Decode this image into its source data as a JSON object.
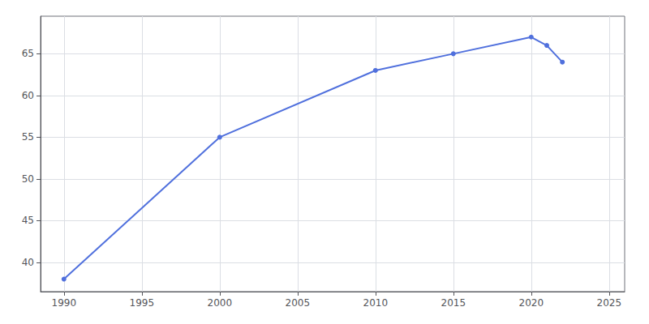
{
  "chart_data": {
    "type": "line",
    "x": [
      1990,
      2000,
      2010,
      2015,
      2020,
      2021,
      2022
    ],
    "values": [
      38,
      55,
      63,
      65,
      67,
      66,
      64
    ],
    "xlim": [
      1988.5,
      2026
    ],
    "ylim": [
      36.5,
      69.5
    ],
    "xticks": [
      1990,
      1995,
      2000,
      2005,
      2010,
      2015,
      2020,
      2025
    ],
    "yticks": [
      40,
      45,
      50,
      55,
      60,
      65
    ],
    "grid": true
  }
}
